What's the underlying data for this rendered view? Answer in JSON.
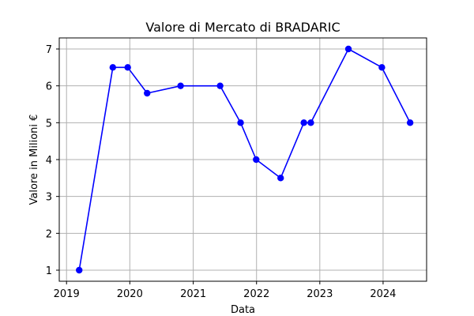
{
  "chart_data": {
    "type": "line",
    "title": "Valore di Mercato di BRADARIC",
    "xlabel": "Data",
    "ylabel": "Valore in Milioni €",
    "x_ticks": [
      "2019",
      "2020",
      "2021",
      "2022",
      "2023",
      "2024"
    ],
    "y_ticks": [
      "1",
      "2",
      "3",
      "4",
      "5",
      "6",
      "7"
    ],
    "ylim": [
      0.7,
      7.3
    ],
    "xlim": [
      "2018-11-20",
      "2024-09-08"
    ],
    "grid": true,
    "series": [
      {
        "color": "#0000ff",
        "points": [
          {
            "x": "2019-03-15",
            "y": 1.0
          },
          {
            "x": "2019-09-25",
            "y": 6.5
          },
          {
            "x": "2019-12-20",
            "y": 6.5
          },
          {
            "x": "2020-04-10",
            "y": 5.8
          },
          {
            "x": "2020-10-20",
            "y": 6.0
          },
          {
            "x": "2021-06-05",
            "y": 6.0
          },
          {
            "x": "2021-10-01",
            "y": 5.0
          },
          {
            "x": "2021-12-30",
            "y": 4.0
          },
          {
            "x": "2022-05-20",
            "y": 3.5
          },
          {
            "x": "2022-10-01",
            "y": 5.0
          },
          {
            "x": "2022-11-10",
            "y": 5.0
          },
          {
            "x": "2023-06-15",
            "y": 7.0
          },
          {
            "x": "2023-12-25",
            "y": 6.5
          },
          {
            "x": "2024-06-05",
            "y": 5.0
          }
        ]
      }
    ]
  }
}
